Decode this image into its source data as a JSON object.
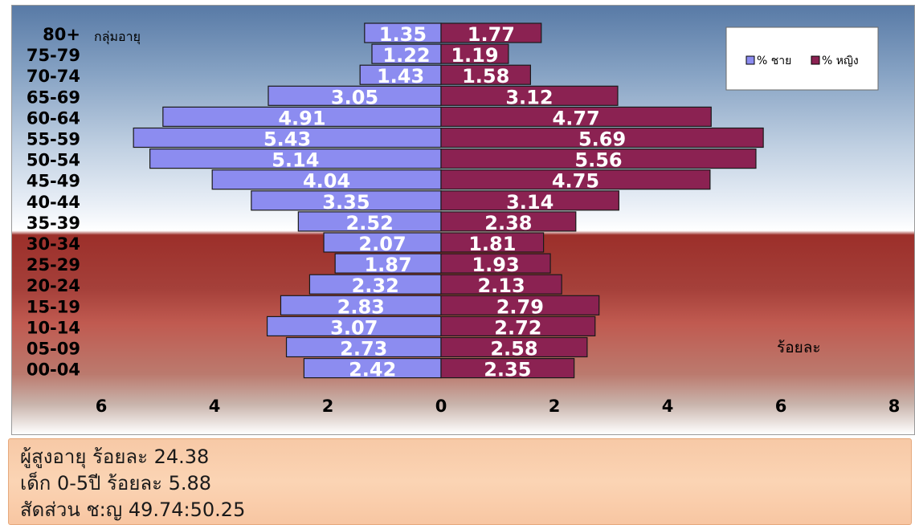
{
  "chart_data": {
    "type": "bar",
    "orientation": "horizontal-population-pyramid",
    "age_axis_title": "กลุ่มอายุ",
    "value_unit_label": "ร้อยละ",
    "categories": [
      "80+",
      "75-79",
      "70-74",
      "65-69",
      "60-64",
      "55-59",
      "50-54",
      "45-49",
      "40-44",
      "35-39",
      "30-34",
      "25-29",
      "20-24",
      "15-19",
      "10-14",
      "05-09",
      "00-04"
    ],
    "series": [
      {
        "name": "% ชาย",
        "color": "#8c8cf0",
        "side": "left",
        "values": [
          1.35,
          1.22,
          1.43,
          3.05,
          4.91,
          5.43,
          5.14,
          4.04,
          3.35,
          2.52,
          2.07,
          1.87,
          2.32,
          2.83,
          3.07,
          2.73,
          2.42
        ]
      },
      {
        "name": "% หญิง",
        "color": "#8b2252",
        "side": "right",
        "values": [
          1.77,
          1.19,
          1.58,
          3.12,
          4.77,
          5.69,
          5.56,
          4.75,
          3.14,
          2.38,
          1.81,
          1.93,
          2.13,
          2.79,
          2.72,
          2.58,
          2.35
        ]
      }
    ],
    "x_ticks": [
      "6",
      "4",
      "2",
      "0",
      "2",
      "4",
      "6",
      "8"
    ],
    "xlim": [
      -6,
      8
    ],
    "grid": false,
    "legend_position": "top-right"
  },
  "info": {
    "elderly": "ผู้สูงอายุ ร้อยละ 24.38",
    "children": "เด็ก 0-5ปี ร้อยละ 5.88",
    "sex_ratio": "สัดส่วน ช:ญ  49.74:50.25"
  }
}
